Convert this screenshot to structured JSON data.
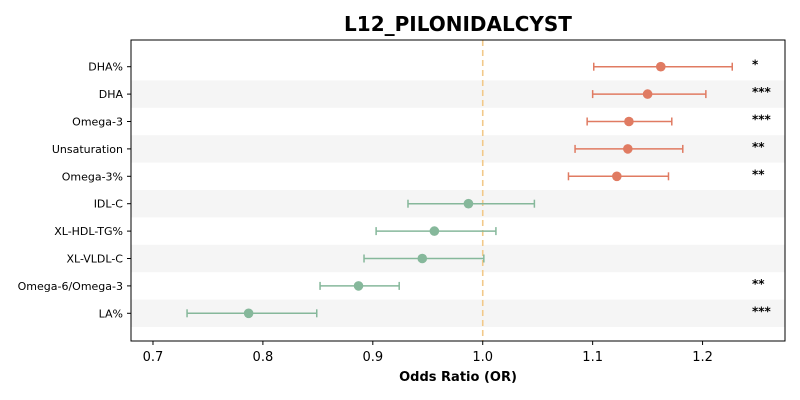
{
  "chart_data": {
    "type": "scatter",
    "title": "L12_PILONIDALCYST",
    "xlabel": "Odds Ratio (OR)",
    "ylabel": "",
    "xlim": [
      0.68,
      1.275
    ],
    "xticks": [
      0.7,
      0.8,
      0.9,
      1.0,
      1.1,
      1.2
    ],
    "xtick_labels": [
      "0.7",
      "0.8",
      "0.9",
      "1.0",
      "1.1",
      "1.2"
    ],
    "reference_line": 1.0,
    "grid": false,
    "colors": {
      "risk": "#e07b62",
      "protective": "#86b89b",
      "reference": "#f2c98a",
      "band": "#f5f5f5"
    },
    "rows": [
      {
        "label": "DHA%",
        "or": 1.162,
        "lower": 1.101,
        "upper": 1.227,
        "sig": "*"
      },
      {
        "label": "DHA",
        "or": 1.15,
        "lower": 1.1,
        "upper": 1.203,
        "sig": "***"
      },
      {
        "label": "Omega-3",
        "or": 1.133,
        "lower": 1.095,
        "upper": 1.172,
        "sig": "***"
      },
      {
        "label": "Unsaturation",
        "or": 1.132,
        "lower": 1.084,
        "upper": 1.182,
        "sig": "**"
      },
      {
        "label": "Omega-3%",
        "or": 1.122,
        "lower": 1.078,
        "upper": 1.169,
        "sig": "**"
      },
      {
        "label": "IDL-C",
        "or": 0.987,
        "lower": 0.932,
        "upper": 1.047,
        "sig": ""
      },
      {
        "label": "XL-HDL-TG%",
        "or": 0.956,
        "lower": 0.903,
        "upper": 1.012,
        "sig": ""
      },
      {
        "label": "XL-VLDL-C",
        "or": 0.945,
        "lower": 0.892,
        "upper": 1.001,
        "sig": ""
      },
      {
        "label": "Omega-6/Omega-3",
        "or": 0.887,
        "lower": 0.852,
        "upper": 0.924,
        "sig": "**"
      },
      {
        "label": "LA%",
        "or": 0.787,
        "lower": 0.731,
        "upper": 0.849,
        "sig": "***"
      }
    ]
  }
}
